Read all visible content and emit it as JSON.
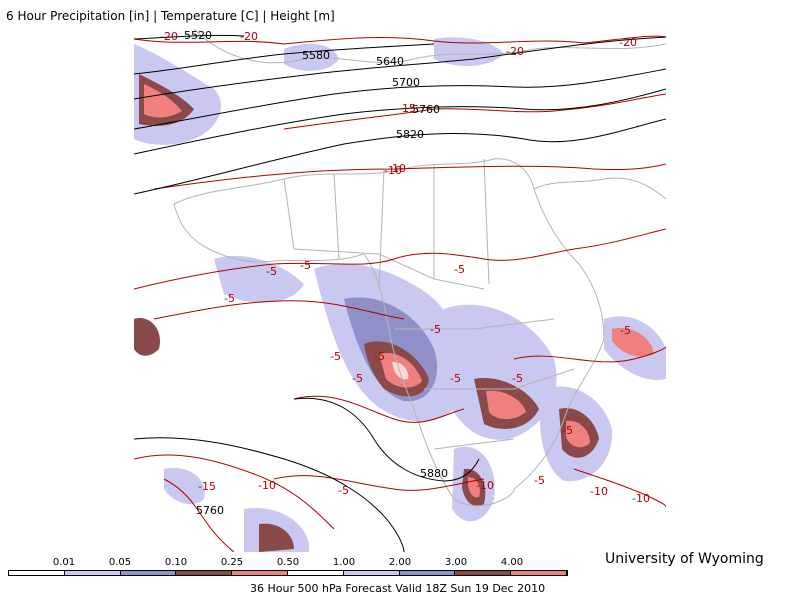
{
  "header": {
    "title": "6 Hour Precipitation [in] | Temperature [C] | Height [m]"
  },
  "map": {
    "height_labels": [
      "5520",
      "5580",
      "5640",
      "5700",
      "5760",
      "5820",
      "5880",
      "5760"
    ],
    "temperature_labels": [
      "-20",
      "-20",
      "-20",
      "-20",
      "-15",
      "-10",
      "-5",
      "-5",
      "-5",
      "-5",
      "-5",
      "-5",
      "-5",
      "-5",
      "-5",
      "-5",
      "-5",
      "-5",
      "-5",
      "-5",
      "-10",
      "-15",
      "-10",
      "-10",
      "-10",
      "-10"
    ],
    "colors": {
      "height_contour": "#000000",
      "temperature_contour": "#b00000",
      "borders": "#b4b4b4",
      "precip_light": "#c8c8f0",
      "precip_medium": "#9090c8",
      "precip_dark": "#8a4a4a",
      "precip_heavy": "#f08080",
      "precip_extreme": "#ffd8d8"
    }
  },
  "legend": {
    "thresholds": [
      "0.01",
      "0.05",
      "0.10",
      "0.25",
      "0.50",
      "1.00",
      "2.00",
      "3.00",
      "4.00"
    ],
    "colors": [
      "#ffffff",
      "#c8c8f0",
      "#9090c8",
      "#8a4a4a",
      "#f08080",
      "#ffffff",
      "#c8c8f0",
      "#9090c8",
      "#8a4a4a",
      "#f08080"
    ]
  },
  "footer": {
    "valid_text": "36 Hour 500 hPa Forecast Valid 18Z Sun 19 Dec 2010",
    "credit": "University of Wyoming"
  }
}
